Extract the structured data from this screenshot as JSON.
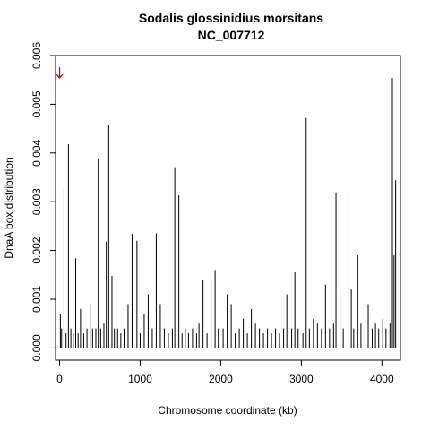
{
  "chart_data": {
    "type": "bar",
    "title": "Sodalis glossinidius morsitans",
    "subtitle": "NC_007712",
    "xlabel": "Chromosome coordinate (kb)",
    "ylabel": "DnaA box distribution",
    "xlim": [
      -50,
      4230
    ],
    "ylim": [
      -0.00025,
      0.006
    ],
    "xticks": [
      0,
      1000,
      2000,
      3000,
      4000
    ],
    "xtick_labels": [
      "0",
      "1000",
      "2000",
      "3000",
      "4000"
    ],
    "yticks": [
      0.0,
      0.001,
      0.002,
      0.003,
      0.004,
      0.005,
      0.006
    ],
    "ytick_labels": [
      "0.000",
      "0.001",
      "0.002",
      "0.003",
      "0.004",
      "0.005",
      "0.006"
    ],
    "grid": false,
    "bar_color": "#000000",
    "marker": {
      "x": 0,
      "y": 0.00565,
      "symbol": "arrow-down",
      "color": "#cc0000"
    },
    "x": [
      10,
      25,
      55,
      80,
      110,
      140,
      170,
      200,
      230,
      260,
      300,
      340,
      380,
      410,
      450,
      480,
      510,
      550,
      580,
      610,
      650,
      680,
      720,
      760,
      800,
      850,
      900,
      960,
      1000,
      1050,
      1100,
      1150,
      1200,
      1250,
      1300,
      1350,
      1400,
      1430,
      1480,
      1520,
      1560,
      1600,
      1650,
      1700,
      1730,
      1780,
      1830,
      1880,
      1930,
      1970,
      2030,
      2080,
      2130,
      2180,
      2230,
      2280,
      2330,
      2380,
      2430,
      2480,
      2530,
      2580,
      2630,
      2680,
      2730,
      2780,
      2820,
      2880,
      2920,
      2960,
      3020,
      3060,
      3100,
      3150,
      3200,
      3250,
      3300,
      3350,
      3400,
      3430,
      3480,
      3520,
      3580,
      3620,
      3650,
      3700,
      3740,
      3790,
      3830,
      3880,
      3920,
      3960,
      4010,
      4050,
      4100,
      4130,
      4150,
      4170
    ],
    "values": [
      0.0007,
      0.0004,
      0.00328,
      0.0003,
      0.00418,
      0.0004,
      0.0003,
      0.00184,
      0.0003,
      0.0008,
      0.0003,
      0.0004,
      0.0009,
      0.0004,
      0.0004,
      0.00389,
      0.0004,
      0.0005,
      0.00218,
      0.00458,
      0.00148,
      0.0004,
      0.0004,
      0.0003,
      0.0004,
      0.0009,
      0.00234,
      0.0022,
      0.0003,
      0.0007,
      0.0011,
      0.0004,
      0.00235,
      0.0009,
      0.0004,
      0.0003,
      0.0004,
      0.00371,
      0.00313,
      0.0003,
      0.0004,
      0.0003,
      0.0004,
      0.0003,
      0.0005,
      0.0014,
      0.0003,
      0.0014,
      0.0016,
      0.0004,
      0.0004,
      0.0011,
      0.0009,
      0.0003,
      0.0004,
      0.0006,
      0.0003,
      0.0008,
      0.0005,
      0.0004,
      0.0003,
      0.0004,
      0.0003,
      0.0004,
      0.0003,
      0.0004,
      0.0011,
      0.0004,
      0.00155,
      0.0004,
      0.0003,
      0.00472,
      0.0004,
      0.0006,
      0.0005,
      0.0004,
      0.0013,
      0.0004,
      0.0005,
      0.00319,
      0.0012,
      0.0004,
      0.00319,
      0.0012,
      0.0004,
      0.0019,
      0.0005,
      0.0004,
      0.0009,
      0.0004,
      0.0005,
      0.0004,
      0.0006,
      0.0004,
      0.0005,
      0.00554,
      0.0019,
      0.00344
    ]
  }
}
